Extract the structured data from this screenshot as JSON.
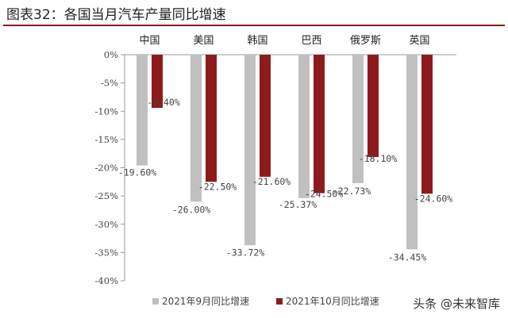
{
  "header": {
    "title": "图表32：各国当月汽车产量同比增速"
  },
  "watermark": "头条 @未来智库",
  "colors": {
    "series1": "#c0c0c0",
    "series2": "#8e1b1b",
    "axis": "#999999",
    "text": "#444444"
  },
  "chart_data": {
    "type": "bar",
    "categories": [
      "中国",
      "美国",
      "韩国",
      "巴西",
      "俄罗斯",
      "英国"
    ],
    "series": [
      {
        "name": "2021年9月同比增速",
        "values": [
          -19.6,
          -26.0,
          -33.72,
          -25.37,
          -22.73,
          -34.45
        ],
        "labels": [
          "-19.60%",
          "-26.00%",
          "-33.72%",
          "-25.37%",
          "-22.73%",
          "-34.45%"
        ]
      },
      {
        "name": "2021年10月同比增速",
        "values": [
          -9.4,
          -22.5,
          -21.6,
          -24.5,
          -18.1,
          -24.6
        ],
        "labels": [
          "-9.40%",
          "-22.50%",
          "-21.60%",
          "-24.50%",
          "-18.10%",
          "-24.60%"
        ]
      }
    ],
    "y_ticks": [
      0,
      -5,
      -10,
      -15,
      -20,
      -25,
      -30,
      -35,
      -40
    ],
    "y_tick_labels": [
      "0%",
      "-5%",
      "-10%",
      "-15%",
      "-20%",
      "-25%",
      "-30%",
      "-35%",
      "-40%"
    ],
    "ylim": [
      -40,
      0
    ],
    "category_axis_position": "top",
    "grid": false,
    "legend": "bottom"
  }
}
